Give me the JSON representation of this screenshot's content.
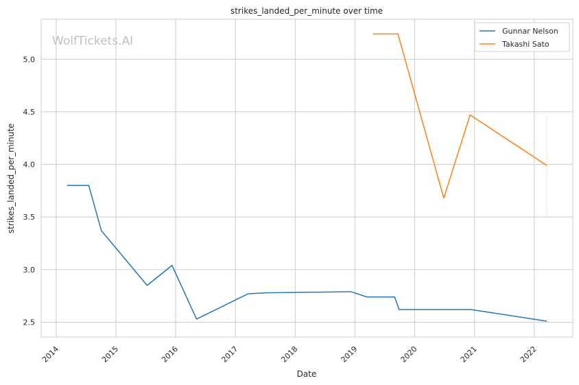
{
  "chart_data": {
    "type": "line",
    "title": "strikes_landed_per_minute over time",
    "xlabel": "Date",
    "ylabel": "strikes_landed_per_minute",
    "watermark": "WolfTickets.AI",
    "x_ticks": [
      "2014",
      "2015",
      "2016",
      "2017",
      "2018",
      "2019",
      "2020",
      "2021",
      "2022"
    ],
    "y_ticks": [
      "2.5",
      "3.0",
      "3.5",
      "4.0",
      "4.5",
      "5.0"
    ],
    "xlim": [
      "2013-10-01",
      "2022-08-25"
    ],
    "ylim": [
      2.36,
      5.38
    ],
    "grid": true,
    "legend_position": "top-right",
    "series": [
      {
        "name": "Gunnar Nelson",
        "color": "#1f77b4",
        "points": [
          {
            "x": "2014-03-08",
            "y": 3.8
          },
          {
            "x": "2014-07-19",
            "y": 3.8
          },
          {
            "x": "2014-10-04",
            "y": 3.37
          },
          {
            "x": "2015-07-11",
            "y": 2.85
          },
          {
            "x": "2015-12-10",
            "y": 3.04
          },
          {
            "x": "2016-05-08",
            "y": 2.53
          },
          {
            "x": "2017-03-18",
            "y": 2.77
          },
          {
            "x": "2017-07-16",
            "y": 2.78
          },
          {
            "x": "2018-12-08",
            "y": 2.79
          },
          {
            "x": "2019-03-16",
            "y": 2.74
          },
          {
            "x": "2019-09-01",
            "y": 2.74
          },
          {
            "x": "2019-09-28",
            "y": 2.62
          },
          {
            "x": "2020-12-12",
            "y": 2.62
          },
          {
            "x": "2022-03-19",
            "y": 2.51
          }
        ]
      },
      {
        "name": "Takashi Sato",
        "color": "#ff7f0e",
        "points": [
          {
            "x": "2019-04-20",
            "y": 5.24
          },
          {
            "x": "2019-09-21",
            "y": 5.24
          },
          {
            "x": "2020-06-27",
            "y": 3.68
          },
          {
            "x": "2020-12-05",
            "y": 4.47
          },
          {
            "x": "2022-03-19",
            "y": 3.99
          }
        ]
      }
    ],
    "error_bar": {
      "x": "2022-03-19",
      "y_low": 3.5,
      "y_high": 4.47,
      "color": "#ff7f0e"
    }
  }
}
